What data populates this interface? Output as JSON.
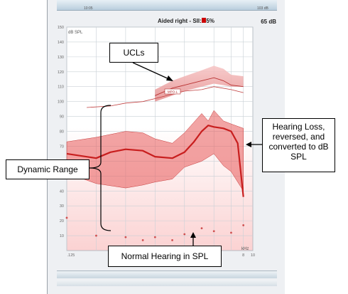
{
  "header": {
    "title": "Aided right - SII: 55%",
    "level": "65 dB",
    "scroll_labels": [
      "10:05",
      "103 dB"
    ]
  },
  "annotations": {
    "ucl": "UCLs",
    "hearing_loss": "Hearing Loss, reversed, and converted to dB SPL",
    "dynamic_range": "Dynamic Range",
    "normal_hearing": "Normal Hearing in SPL",
    "inset_label": "MPO-L"
  },
  "colors": {
    "main_curve": "#c81e1e",
    "band_fill": "#e85a5a",
    "ucl_fill": "#eea0a0",
    "grid": "#c9d0d6",
    "background_top": "#ffffff",
    "background_bottom": "#fbd6d6"
  },
  "chart_data": {
    "type": "line",
    "ylabel": "dB SPL",
    "xlabel": "kHz",
    "ylim": [
      0,
      150
    ],
    "yticks": [
      10,
      20,
      30,
      40,
      50,
      60,
      70,
      80,
      90,
      100,
      110,
      120,
      130,
      140,
      150
    ],
    "xticks": [
      ".125",
      "8",
      "10"
    ],
    "x_log": true,
    "xlim": [
      0.125,
      10
    ],
    "grid": true,
    "series": [
      {
        "name": "",
        "role": "ucl_upper",
        "x": [
          1,
          1.5,
          2,
          3,
          4,
          5,
          6,
          8
        ],
        "values": [
          108,
          114,
          117,
          121,
          124,
          122,
          118,
          117
        ]
      },
      {
        "name": "",
        "role": "ucl_lower",
        "x": [
          1,
          1.5,
          2,
          3,
          4,
          5,
          6,
          8
        ],
        "values": [
          100,
          104,
          107,
          110,
          112,
          111,
          110,
          110
        ]
      },
      {
        "name": "",
        "role": "ucl_line",
        "x": [
          1,
          1.5,
          2,
          3,
          4,
          5,
          6,
          8
        ],
        "values": [
          104,
          109,
          111,
          114,
          116,
          114,
          111,
          110
        ]
      },
      {
        "name": "",
        "role": "mpo_line",
        "x": [
          0.2,
          0.35,
          0.5,
          0.75,
          1,
          1.5,
          2,
          3,
          4,
          6,
          8
        ],
        "values": [
          96,
          97,
          99,
          100,
          102,
          105,
          107,
          108,
          110,
          108,
          106
        ]
      },
      {
        "name": "",
        "role": "band_upper",
        "x": [
          0.125,
          0.25,
          0.5,
          0.75,
          1,
          1.5,
          2,
          3,
          3.5,
          4,
          5,
          6,
          8
        ],
        "values": [
          73,
          76,
          80,
          79,
          75,
          72,
          79,
          92,
          87,
          94,
          87,
          85,
          82
        ]
      },
      {
        "name": "",
        "role": "band_lower",
        "x": [
          0.125,
          0.25,
          0.5,
          0.75,
          1,
          1.5,
          2,
          3,
          4,
          5,
          6,
          8
        ],
        "values": [
          52,
          45,
          42,
          44,
          46,
          48,
          56,
          60,
          65,
          57,
          53,
          40
        ]
      },
      {
        "name": "",
        "role": "aided_curve",
        "x": [
          0.125,
          0.25,
          0.35,
          0.5,
          0.75,
          1,
          1.5,
          2,
          2.5,
          3,
          3.5,
          4,
          5,
          6,
          7,
          8
        ],
        "values": [
          65,
          62,
          66,
          68,
          67,
          63,
          62,
          66,
          73,
          80,
          84,
          83,
          82,
          80,
          72,
          36
        ]
      },
      {
        "name": "",
        "role": "normal_hearing",
        "x": [
          0.125,
          0.25,
          0.5,
          0.75,
          1,
          1.5,
          2,
          3,
          4,
          6,
          8
        ],
        "values": [
          22,
          10,
          9,
          7,
          9,
          7,
          11,
          15,
          13,
          12,
          17
        ]
      }
    ]
  }
}
